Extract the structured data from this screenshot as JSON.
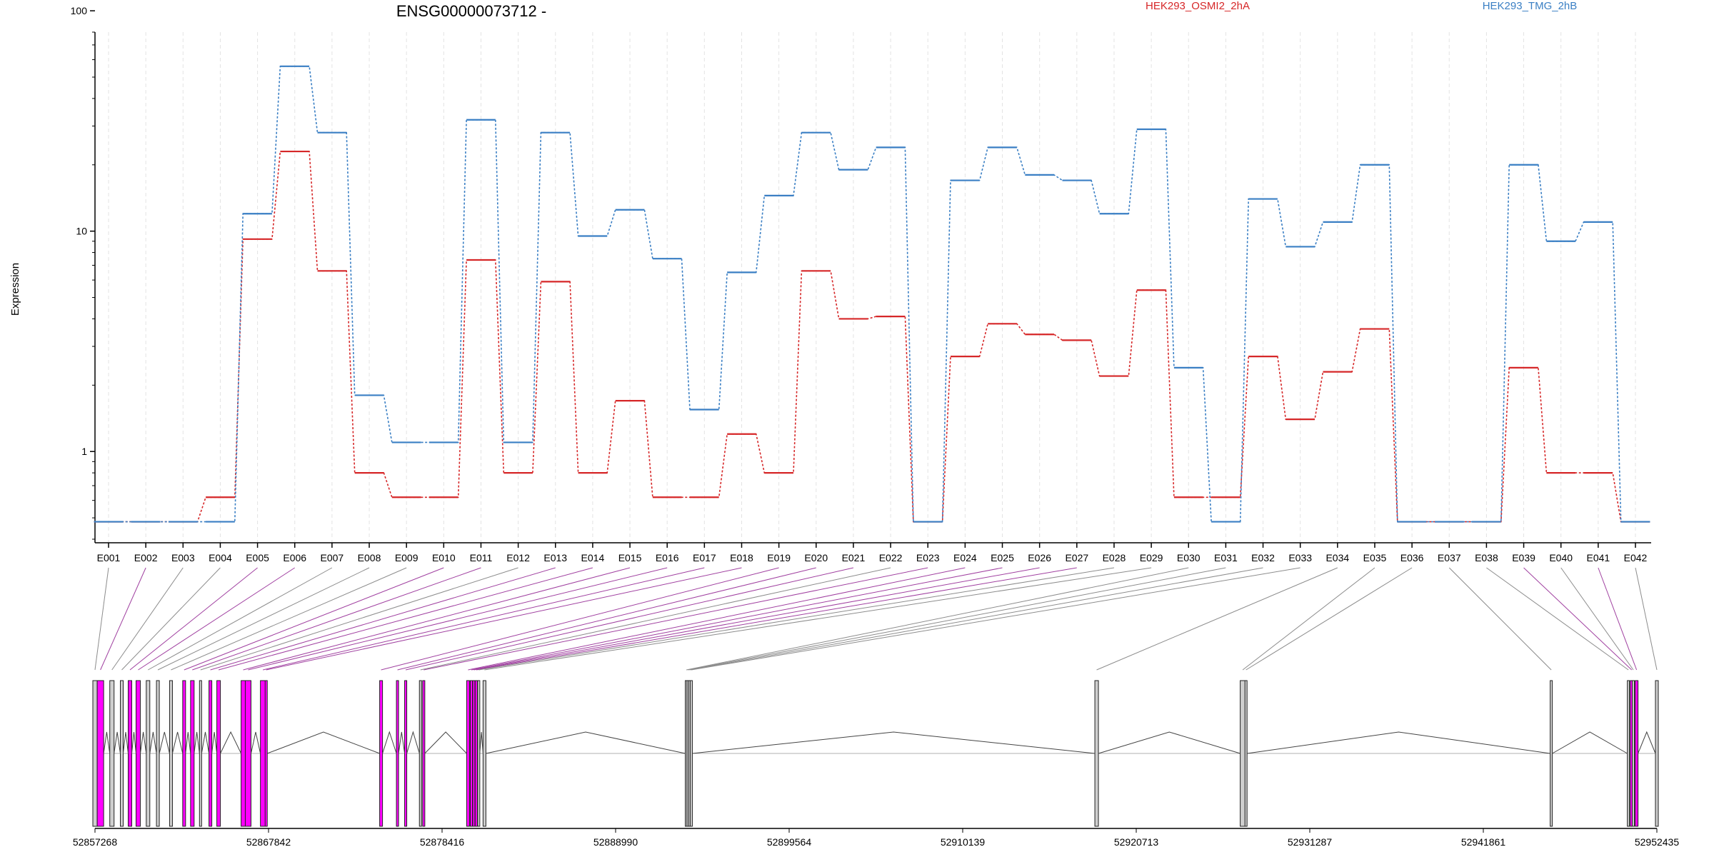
{
  "chart_data": {
    "type": "line",
    "title": "ENSG00000073712 -",
    "ylabel": "Expression",
    "xlabel": "",
    "y_scale": "log10",
    "ylim": [
      0.4,
      80
    ],
    "y_ticks": [
      1,
      10,
      100
    ],
    "y_tick_labels": [
      "1",
      "10",
      "100"
    ],
    "grid": "vertical dashed lines at each exon",
    "legend_placement": "top",
    "categories": [
      "E001",
      "E002",
      "E003",
      "E004",
      "E005",
      "E006",
      "E007",
      "E008",
      "E009",
      "E010",
      "E011",
      "E012",
      "E013",
      "E014",
      "E015",
      "E016",
      "E017",
      "E018",
      "E019",
      "E020",
      "E021",
      "E022",
      "E023",
      "E024",
      "E025",
      "E026",
      "E027",
      "E028",
      "E029",
      "E030",
      "E031",
      "E032",
      "E033",
      "E034",
      "E035",
      "E036",
      "E037",
      "E038",
      "E039",
      "E040",
      "E041",
      "E042"
    ],
    "series": [
      {
        "name": "HEK293_OSMI2_2hA",
        "color": "#d62728",
        "values": [
          0.48,
          0.48,
          0.48,
          0.62,
          9.2,
          23,
          6.6,
          0.8,
          0.62,
          0.62,
          7.4,
          0.8,
          5.9,
          0.8,
          1.7,
          0.62,
          0.62,
          1.2,
          0.8,
          6.6,
          4,
          4.1,
          0.48,
          2.7,
          3.8,
          3.4,
          3.2,
          2.2,
          5.4,
          0.62,
          0.62,
          2.7,
          1.4,
          2.3,
          3.6,
          0.48,
          0.48,
          0.48,
          2.4,
          0.8,
          0.8,
          0.48
        ]
      },
      {
        "name": "HEK293_TMG_2hB",
        "color": "#3a7fc4",
        "values": [
          0.48,
          0.48,
          0.48,
          0.48,
          12,
          56,
          28,
          1.8,
          1.1,
          1.1,
          32,
          1.1,
          28,
          9.5,
          12.5,
          7.5,
          1.55,
          6.5,
          14.5,
          28,
          19,
          24,
          0.48,
          17,
          24,
          18,
          17,
          12,
          29,
          2.4,
          0.48,
          14,
          8.5,
          11,
          20,
          0.48,
          0.48,
          0.48,
          20,
          9,
          11,
          0.48
        ]
      }
    ],
    "gene_model": {
      "coordinate_labels": [
        "52857268",
        "52867842",
        "52878416",
        "52888990",
        "52899564",
        "52910139",
        "52920713",
        "52931287",
        "52941861",
        "52952435"
      ],
      "exon_highlight_color": "#ff00ff",
      "highlighted_exons": [
        "E002",
        "E005",
        "E006",
        "E010",
        "E011",
        "E013",
        "E014",
        "E015",
        "E016",
        "E017",
        "E018",
        "E019",
        "E020",
        "E021",
        "E023",
        "E024",
        "E025",
        "E026",
        "E027",
        "E039",
        "E041"
      ]
    }
  }
}
